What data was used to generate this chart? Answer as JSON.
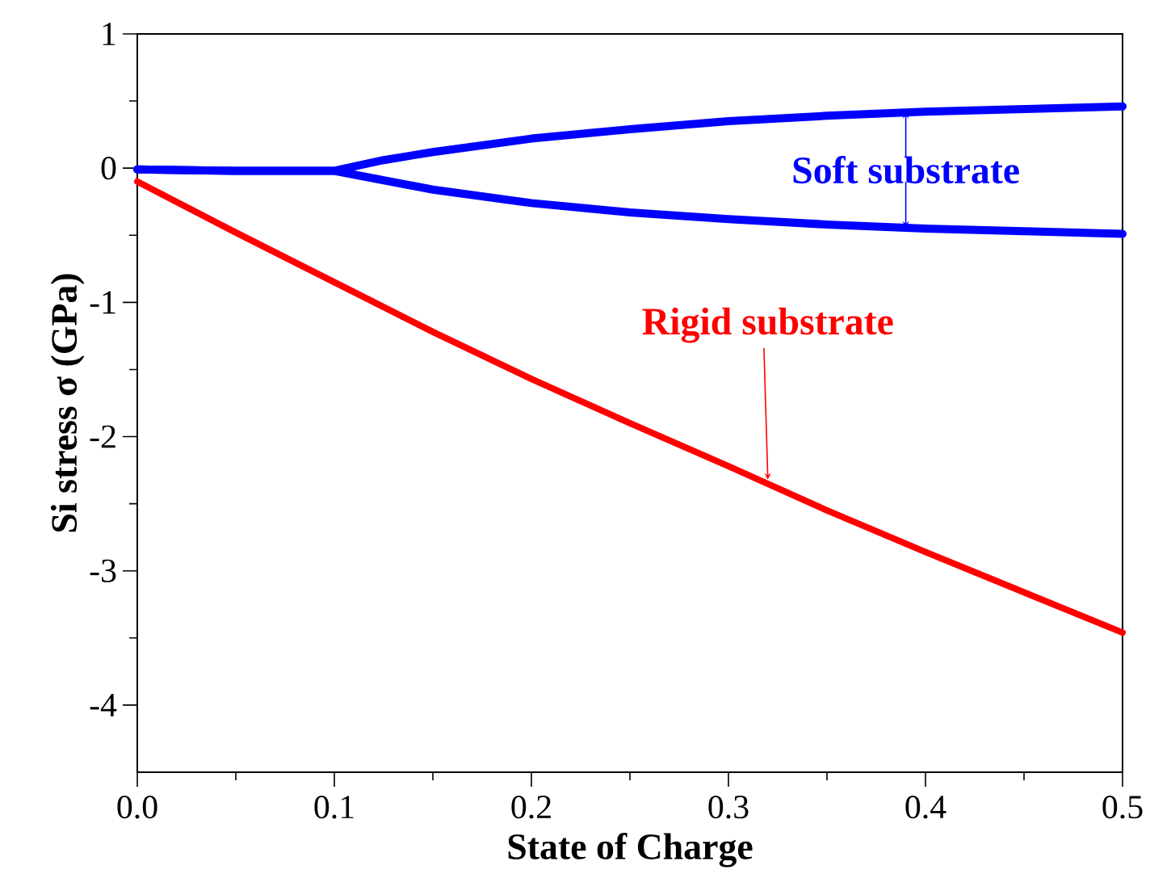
{
  "chart_data": {
    "type": "line",
    "xlabel": "State of Charge",
    "ylabel": "Si stress σ (GPa)",
    "xlim": [
      0,
      0.5
    ],
    "ylim": [
      -4.5,
      1
    ],
    "xticks": [
      {
        "value": 0,
        "label": "0.0"
      },
      0.1,
      0.2,
      0.3,
      0.4,
      0.5
    ],
    "yticks": [
      -4,
      -3,
      -2,
      -1,
      0,
      1
    ],
    "series": [
      {
        "color": "#0000ff",
        "x": [
          0,
          0.05,
          0.1,
          0.125,
          0.15,
          0.2,
          0.25,
          0.3,
          0.35,
          0.4,
          0.45,
          0.5
        ],
        "values": [
          -0.01,
          -0.02,
          -0.02,
          0.06,
          0.12,
          0.22,
          0.29,
          0.35,
          0.39,
          0.42,
          0.44,
          0.46
        ]
      },
      {
        "color": "#0000ff",
        "x": [
          0,
          0.05,
          0.1,
          0.125,
          0.15,
          0.2,
          0.25,
          0.3,
          0.35,
          0.4,
          0.45,
          0.5
        ],
        "values": [
          -0.01,
          -0.02,
          -0.02,
          -0.09,
          -0.16,
          -0.26,
          -0.33,
          -0.38,
          -0.42,
          -0.45,
          -0.47,
          -0.49
        ]
      },
      {
        "color": "#ff0000",
        "x": [
          0,
          0.05,
          0.1,
          0.15,
          0.2,
          0.25,
          0.3,
          0.35,
          0.4,
          0.45,
          0.5
        ],
        "values": [
          -0.1,
          -0.48,
          -0.85,
          -1.22,
          -1.57,
          -1.9,
          -2.22,
          -2.55,
          -2.86,
          -3.16,
          -3.46
        ]
      }
    ],
    "annotations": [
      {
        "text": "Soft substrate",
        "x": 0.39,
        "y": 0.42
      },
      {
        "text": "Rigid substrate",
        "x": 0.32,
        "y": -2.32
      }
    ]
  }
}
